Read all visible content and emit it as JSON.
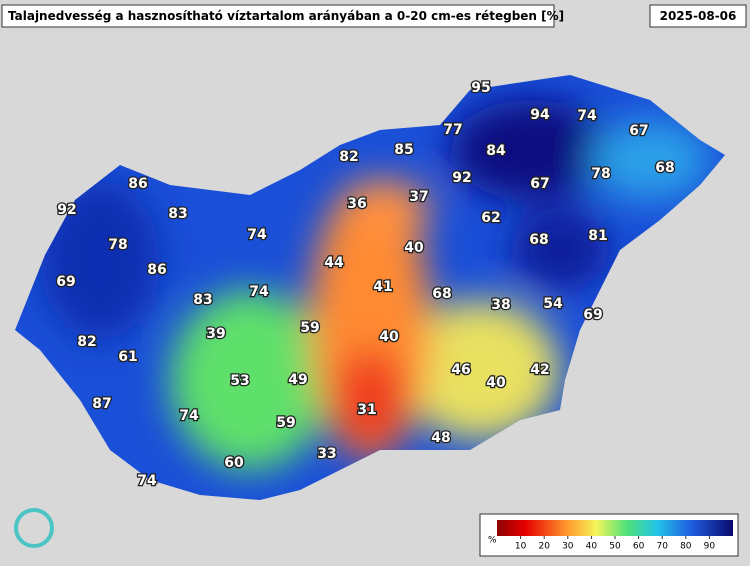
{
  "header": {
    "title": "Talajnedvesség a hasznosítható víztartalom arányában a 0-20 cm-es rétegben [%]",
    "date": "2025-08-06"
  },
  "stations": [
    95,
    94,
    74,
    77,
    67,
    82,
    85,
    84,
    68,
    86,
    92,
    67,
    78,
    36,
    37,
    92,
    83,
    62,
    74,
    78,
    40,
    68,
    81,
    44,
    86,
    69,
    41,
    74,
    68,
    83,
    38,
    54,
    69,
    59,
    39,
    82,
    40,
    61,
    46,
    42,
    53,
    49,
    40,
    87,
    31,
    74,
    59,
    48,
    33,
    60,
    74
  ],
  "legend": {
    "unit": "%",
    "ticks": [
      10,
      20,
      30,
      40,
      50,
      60,
      70,
      80,
      90
    ]
  }
}
